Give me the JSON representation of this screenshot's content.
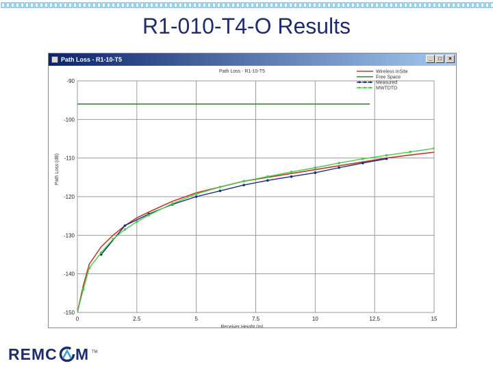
{
  "slide": {
    "title": "R1-010-T4-O Results",
    "logo_text": "REMCOM"
  },
  "window": {
    "title": "Path Loss - R1-10-T5",
    "buttons": {
      "minimize": "_",
      "maximize": "□",
      "close": "×"
    }
  },
  "colors": {
    "title": "#1f2c6c",
    "logo_text": "#1f2c6c",
    "logo_accent": "#3aa0d8",
    "top_band": "#3aa0d8"
  },
  "chart_data": {
    "type": "line",
    "title": "Path Loss - R1-10-T5",
    "xlabel": "Receiver Height (m)",
    "ylabel": "Path Loss (dB)",
    "xlim": [
      0,
      15
    ],
    "ylim": [
      -150,
      -90
    ],
    "x_ticks": [
      "0",
      "2.5",
      "5",
      "7.5",
      "10",
      "12.5",
      "15"
    ],
    "y_ticks": [
      "-90",
      "-100",
      "-110",
      "-120",
      "-130",
      "-140",
      "-150"
    ],
    "grid": true,
    "legend_position": "top-right",
    "series": [
      {
        "name": "Wireless InSite",
        "color": "#c0392b",
        "marker": "none",
        "x": [
          0,
          0.25,
          0.5,
          1,
          1.5,
          2,
          2.5,
          3,
          4,
          5,
          6,
          7,
          8,
          9,
          10,
          11,
          12,
          13,
          14,
          15
        ],
        "y": [
          -150,
          -143,
          -137.5,
          -133,
          -130,
          -127.5,
          -125.5,
          -124,
          -121.2,
          -119,
          -117.5,
          -116,
          -115,
          -114,
          -113,
          -112,
          -111,
          -110,
          -109.2,
          -108.5
        ]
      },
      {
        "name": "Free Space",
        "color": "#2e8b2e",
        "marker": "none",
        "x": [
          0,
          12.3
        ],
        "y": [
          -96,
          -96
        ]
      },
      {
        "name": "Measured",
        "color": "#1a2a80",
        "marker": "dot",
        "x": [
          1,
          2,
          3,
          4,
          5,
          6,
          7,
          8,
          9,
          10,
          11,
          12,
          13
        ],
        "y": [
          -135,
          -127.5,
          -124.5,
          -122,
          -120,
          -118.5,
          -117,
          -115.8,
          -114.8,
          -113.8,
          -112.5,
          -111.3,
          -110.2
        ]
      },
      {
        "name": "MWTDTD",
        "color": "#44cc44",
        "marker": "dot",
        "x": [
          0,
          0.25,
          0.5,
          1,
          1.5,
          2,
          2.5,
          3,
          4,
          5,
          6,
          7,
          8,
          9,
          10,
          11,
          12,
          13,
          14,
          15
        ],
        "y": [
          -150,
          -144,
          -138.5,
          -134.5,
          -131,
          -128.5,
          -126.5,
          -124.8,
          -121.8,
          -119.3,
          -117.5,
          -116,
          -114.8,
          -113.6,
          -112.5,
          -111.3,
          -110.2,
          -109.3,
          -108.4,
          -107.5
        ]
      }
    ]
  }
}
